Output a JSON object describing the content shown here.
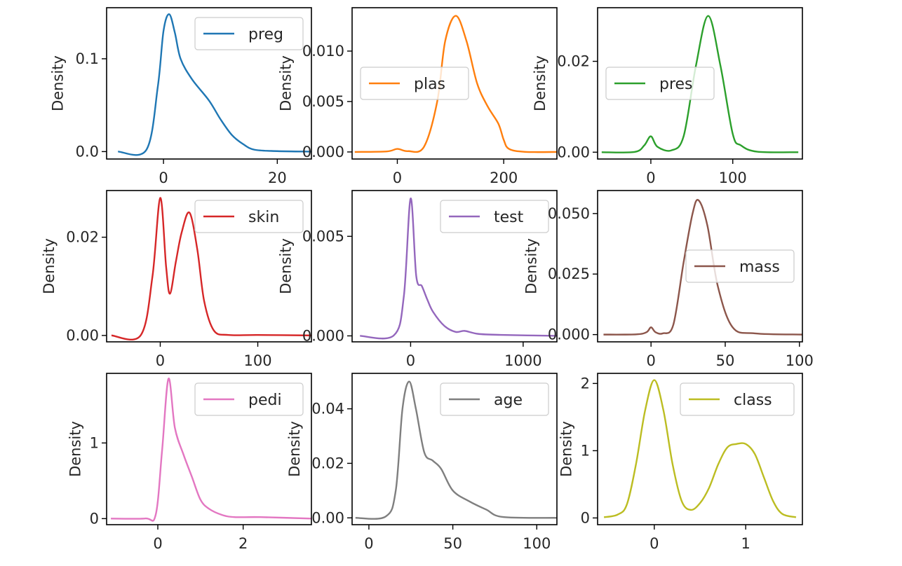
{
  "chart_data": [
    {
      "type": "line",
      "ylabel": "Density",
      "legend": "preg",
      "legend_loc": "upper-right",
      "color": "#1f77b4",
      "xlim": [
        -10,
        26
      ],
      "ylim": [
        -0.008,
        0.155
      ],
      "xticks": [
        0,
        20
      ],
      "yticks": [
        0.0,
        0.1
      ],
      "ytick_labels": [
        "0.0",
        "0.1"
      ],
      "x": [
        -8,
        -3,
        -1,
        0,
        1,
        2,
        3,
        5,
        8,
        10,
        12,
        14,
        16,
        20,
        26
      ],
      "y": [
        0,
        0.002,
        0.07,
        0.13,
        0.148,
        0.128,
        0.1,
        0.078,
        0.055,
        0.035,
        0.018,
        0.008,
        0.002,
        0.0005,
        0
      ]
    },
    {
      "type": "line",
      "ylabel": "Density",
      "legend": "plas",
      "legend_loc": "center-left",
      "color": "#ff7f0e",
      "xlim": [
        -85,
        300
      ],
      "ylim": [
        -0.0007,
        0.0143
      ],
      "xticks": [
        0,
        200
      ],
      "yticks": [
        0.0,
        0.005,
        0.01
      ],
      "ytick_labels": [
        "0.000",
        "0.005",
        "0.010"
      ],
      "x": [
        -80,
        -20,
        0,
        20,
        50,
        75,
        90,
        110,
        130,
        150,
        170,
        190,
        200,
        210,
        240,
        300
      ],
      "y": [
        0,
        5e-05,
        0.0003,
        8e-05,
        0.0005,
        0.005,
        0.011,
        0.0135,
        0.011,
        0.0068,
        0.0045,
        0.0028,
        0.0012,
        0.0003,
        1e-05,
        0
      ]
    },
    {
      "type": "line",
      "ylabel": "Density",
      "legend": "pres",
      "legend_loc": "center-left",
      "color": "#2ca02c",
      "xlim": [
        -65,
        185
      ],
      "ylim": [
        -0.0015,
        0.0318
      ],
      "xticks": [
        0,
        100
      ],
      "yticks": [
        0.0,
        0.02
      ],
      "ytick_labels": [
        "0.00",
        "0.02"
      ],
      "x": [
        -60,
        -20,
        -8,
        0,
        8,
        25,
        40,
        55,
        70,
        85,
        100,
        110,
        130,
        180
      ],
      "y": [
        0,
        5e-05,
        0.0015,
        0.0035,
        0.0012,
        0.0004,
        0.0035,
        0.019,
        0.03,
        0.019,
        0.004,
        0.0015,
        0.0001,
        0
      ]
    },
    {
      "type": "line",
      "ylabel": "Density",
      "legend": "skin",
      "legend_loc": "upper-right",
      "color": "#d62728",
      "xlim": [
        -55,
        155
      ],
      "ylim": [
        -0.0013,
        0.0295
      ],
      "xticks": [
        0,
        100
      ],
      "yticks": [
        0.0,
        0.02
      ],
      "ytick_labels": [
        "0.00",
        "0.02"
      ],
      "x": [
        -50,
        -20,
        -8,
        0,
        6,
        10,
        16,
        22,
        30,
        38,
        45,
        55,
        70,
        100,
        155
      ],
      "y": [
        0,
        5e-05,
        0.012,
        0.028,
        0.014,
        0.0085,
        0.015,
        0.021,
        0.025,
        0.0175,
        0.007,
        0.001,
        0.0001,
        0.0001,
        0
      ]
    },
    {
      "type": "line",
      "ylabel": "Density",
      "legend": "test",
      "legend_loc": "upper-right",
      "color": "#9467bd",
      "xlim": [
        -520,
        1300
      ],
      "ylim": [
        -0.0003,
        0.0073
      ],
      "xticks": [
        0,
        1000
      ],
      "yticks": [
        0.0,
        0.005
      ],
      "ytick_labels": [
        "0.000",
        "0.005"
      ],
      "x": [
        -450,
        -150,
        -60,
        0,
        50,
        100,
        150,
        200,
        300,
        400,
        480,
        600,
        800,
        1300
      ],
      "y": [
        0,
        2e-05,
        0.002,
        0.0069,
        0.003,
        0.0025,
        0.0018,
        0.0012,
        0.0005,
        0.0002,
        0.00025,
        0.0001,
        5e-05,
        0
      ]
    },
    {
      "type": "line",
      "ylabel": "Density",
      "legend": "mass",
      "legend_loc": "center-right",
      "color": "#8c564b",
      "xlim": [
        -36,
        102
      ],
      "ylim": [
        -0.003,
        0.0595
      ],
      "xticks": [
        0,
        50,
        100
      ],
      "yticks": [
        0.0,
        0.025,
        0.05
      ],
      "ytick_labels": [
        "0.000",
        "0.025",
        "0.050"
      ],
      "x": [
        -32,
        -10,
        -3,
        0,
        3,
        8,
        15,
        22,
        28,
        32,
        38,
        45,
        55,
        70,
        102
      ],
      "y": [
        0,
        0.0001,
        0.001,
        0.003,
        0.001,
        0.0005,
        0.004,
        0.03,
        0.05,
        0.0555,
        0.045,
        0.02,
        0.003,
        0.0005,
        0
      ]
    },
    {
      "type": "line",
      "ylabel": "Density",
      "legend": "pedi",
      "legend_loc": "upper-right",
      "color": "#e377c2",
      "xlim": [
        -1.2,
        3.6
      ],
      "ylim": [
        -0.08,
        1.92
      ],
      "xticks": [
        0,
        2
      ],
      "yticks": [
        0,
        1
      ],
      "ytick_labels": [
        "0",
        "1"
      ],
      "x": [
        -1.1,
        -0.3,
        -0.05,
        0.1,
        0.25,
        0.4,
        0.6,
        0.8,
        1.0,
        1.2,
        1.5,
        1.8,
        2.4,
        3.6
      ],
      "y": [
        0,
        0.002,
        0.05,
        0.9,
        1.85,
        1.2,
        0.85,
        0.55,
        0.25,
        0.13,
        0.05,
        0.02,
        0.02,
        0
      ]
    },
    {
      "type": "line",
      "ylabel": "Density",
      "legend": "age",
      "legend_loc": "upper-right",
      "color": "#7f7f7f",
      "xlim": [
        -10,
        112
      ],
      "ylim": [
        -0.0025,
        0.053
      ],
      "xticks": [
        0,
        50,
        100
      ],
      "yticks": [
        0.0,
        0.02,
        0.04
      ],
      "ytick_labels": [
        "0.00",
        "0.02",
        "0.04"
      ],
      "x": [
        -8,
        10,
        16,
        20,
        24,
        28,
        33,
        38,
        43,
        50,
        60,
        70,
        80,
        112
      ],
      "y": [
        0,
        0.0005,
        0.01,
        0.04,
        0.05,
        0.04,
        0.024,
        0.021,
        0.018,
        0.01,
        0.006,
        0.003,
        0.0003,
        0
      ]
    },
    {
      "type": "line",
      "ylabel": "Density",
      "legend": "class",
      "legend_loc": "upper-right",
      "color": "#bcbd22",
      "xlim": [
        -0.62,
        1.62
      ],
      "ylim": [
        -0.1,
        2.15
      ],
      "xticks": [
        0,
        1
      ],
      "yticks": [
        0,
        1,
        2
      ],
      "ytick_labels": [
        "0",
        "1",
        "2"
      ],
      "x": [
        -0.55,
        -0.4,
        -0.3,
        -0.2,
        -0.1,
        0,
        0.1,
        0.2,
        0.3,
        0.4,
        0.5,
        0.6,
        0.7,
        0.8,
        0.9,
        1.0,
        1.1,
        1.2,
        1.3,
        1.4,
        1.55
      ],
      "y": [
        0.01,
        0.05,
        0.2,
        0.8,
        1.6,
        2.05,
        1.6,
        0.8,
        0.25,
        0.12,
        0.22,
        0.45,
        0.8,
        1.05,
        1.1,
        1.1,
        0.95,
        0.6,
        0.25,
        0.06,
        0.01
      ]
    }
  ]
}
